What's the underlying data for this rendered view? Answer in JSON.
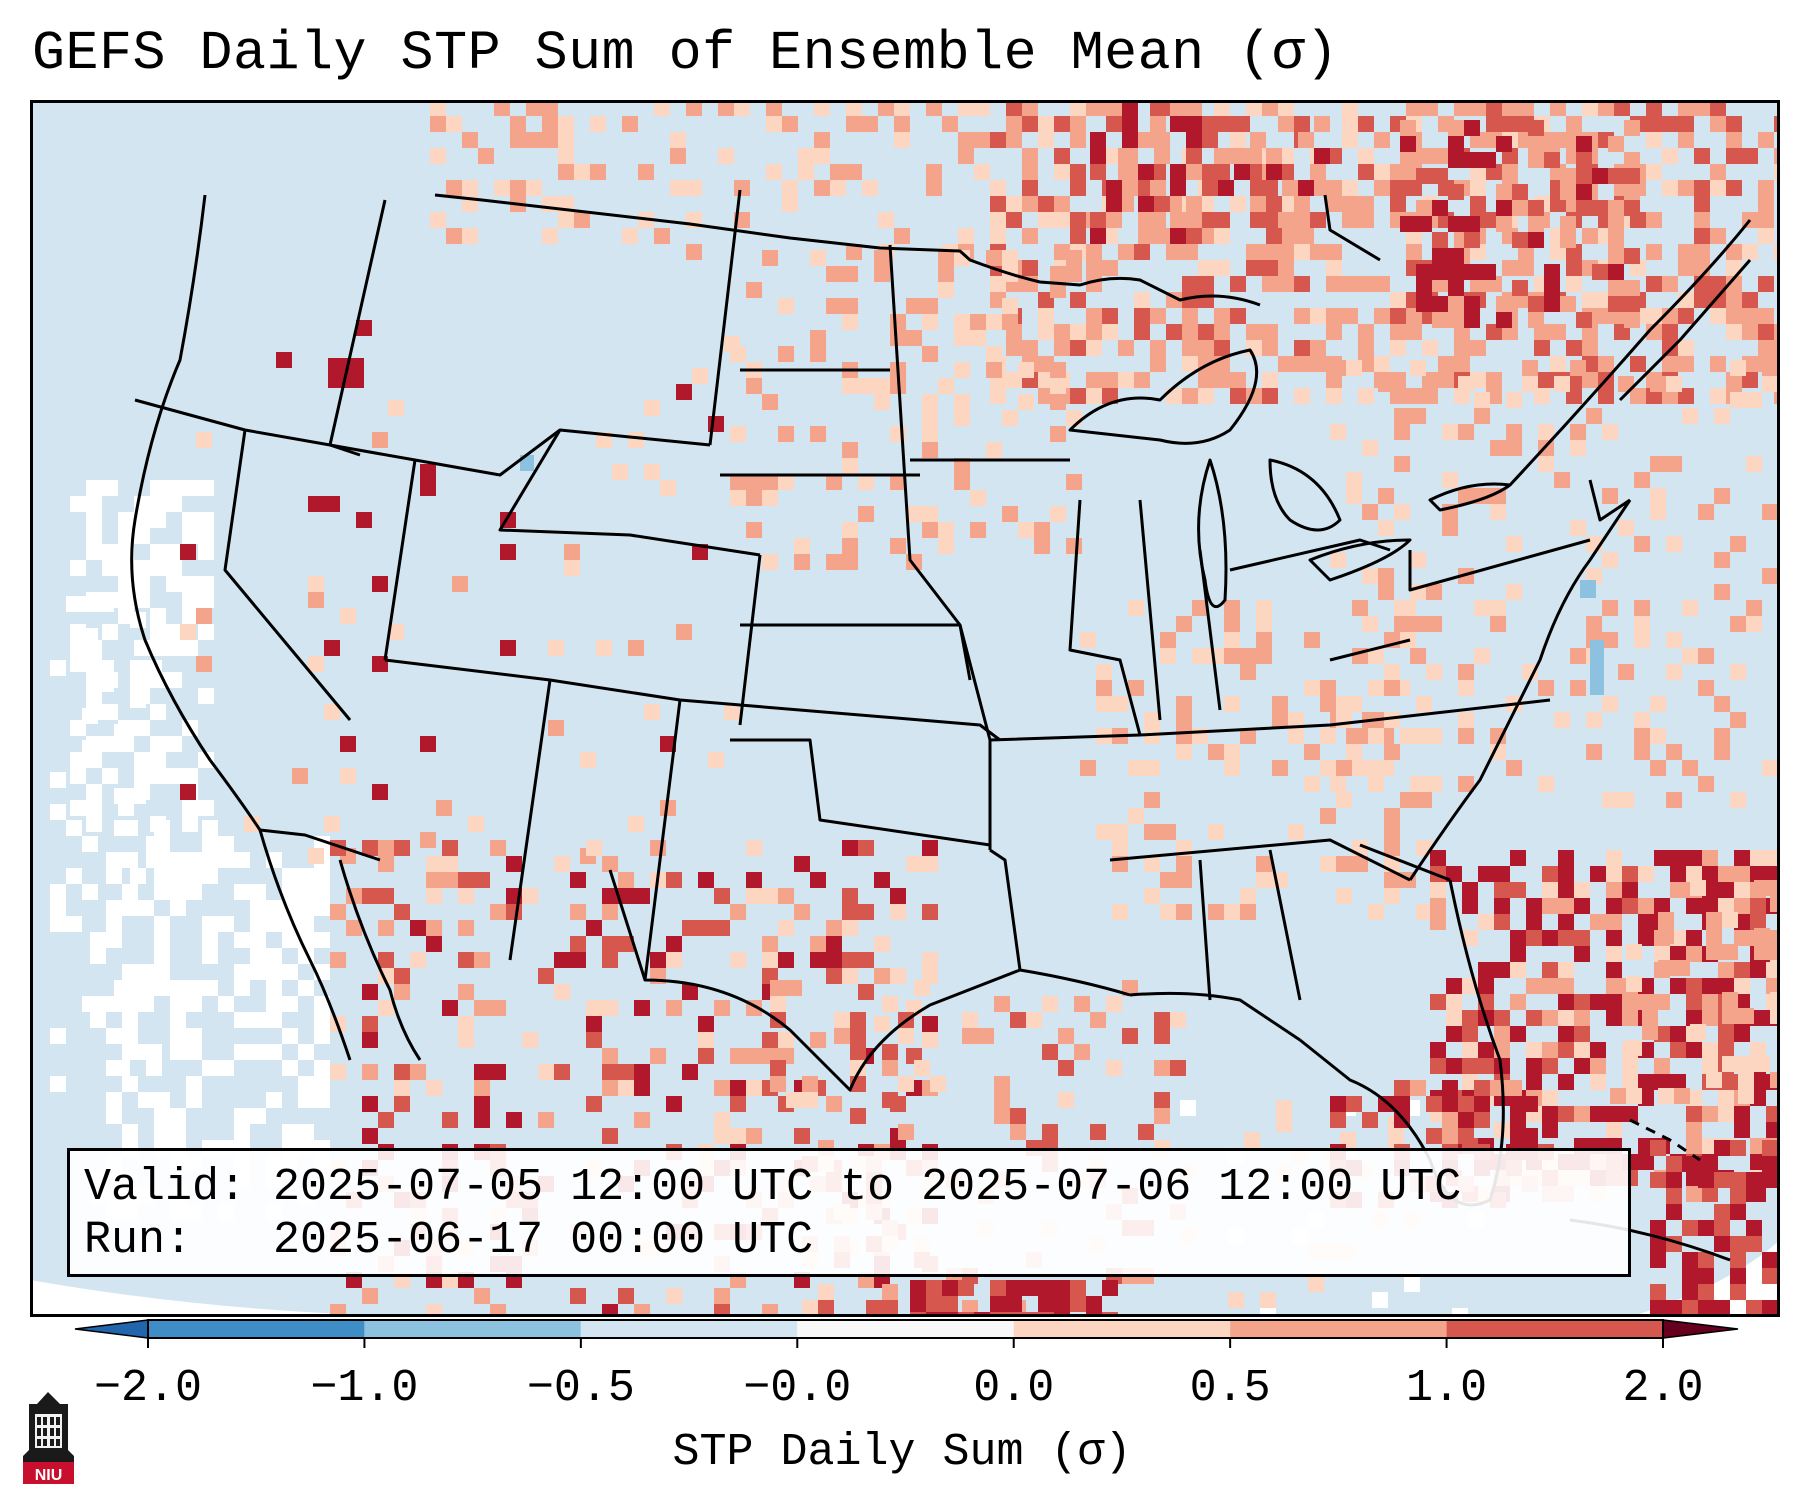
{
  "title": "GEFS Daily STP Sum of Ensemble Mean (σ)",
  "info": {
    "valid_label": "Valid:",
    "valid_value": "2025-07-05 12:00 UTC to 2025-07-06 12:00 UTC",
    "run_label": "Run:",
    "run_value": "2025-06-17 00:00 UTC"
  },
  "colorbar": {
    "label": "STP Daily Sum (σ)",
    "ticks": [
      "−2.0",
      "−1.0",
      "−0.5",
      "−0.0",
      "0.0",
      "0.5",
      "1.0",
      "2.0"
    ],
    "colors": [
      "#3f8dc6",
      "#8cc1e0",
      "#d2e5f0",
      "#f8f8f8",
      "#fcd6c1",
      "#f3a48a",
      "#d5574e",
      "#b2182b"
    ]
  },
  "logo": {
    "text": "NIU",
    "icon": "niu-tower-icon"
  },
  "colors": {
    "ocean_neutral": "#d2e5f0",
    "ocean_white": "#ffffff",
    "light_red": "#fcd6c1",
    "medium_red": "#f3a48a",
    "red": "#d5574e",
    "dark_red": "#b2182b",
    "light_blue": "#8cc1e0"
  }
}
